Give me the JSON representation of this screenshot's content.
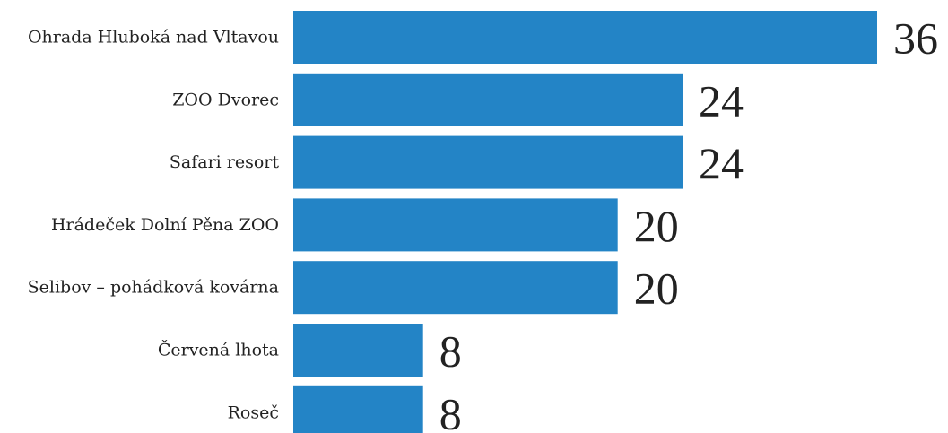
{
  "chart_data": {
    "type": "bar",
    "orientation": "horizontal",
    "categories": [
      "Ohrada Hluboká nad Vltavou",
      "ZOO Dvorec",
      "Safari resort",
      "Hrádeček Dolní Pěna ZOO",
      "Selibov – pohádková kovárna",
      "Červená lhota",
      "Roseč"
    ],
    "values": [
      36,
      24,
      24,
      20,
      20,
      8,
      8
    ],
    "title": "",
    "xlabel": "",
    "ylabel": "",
    "xlim": [
      0,
      36
    ],
    "grid": false,
    "legend": "none",
    "bar_color": "#2384C6",
    "text_color": "#222222",
    "data_labels": true
  }
}
